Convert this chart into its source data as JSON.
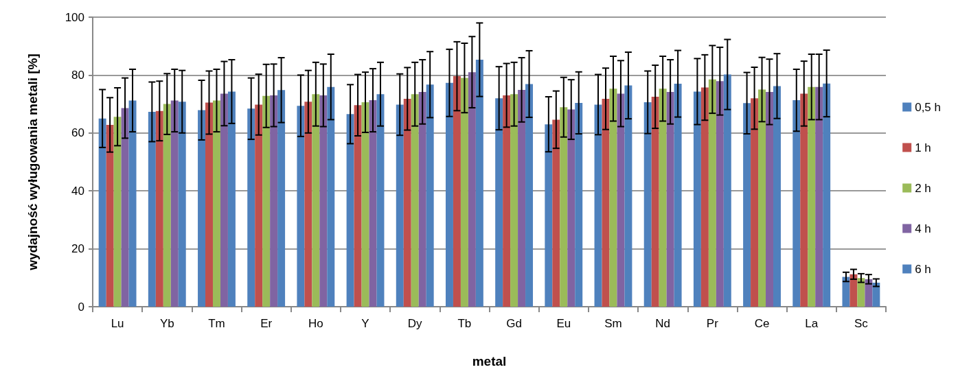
{
  "chart_data": {
    "type": "bar",
    "xlabel": "metal",
    "ylabel": "wydajność wyługowania metali [%]",
    "categories": [
      "Lu",
      "Yb",
      "Tm",
      "Er",
      "Ho",
      "Y",
      "Dy",
      "Tb",
      "Gd",
      "Eu",
      "Sm",
      "Nd",
      "Pr",
      "Ce",
      "La",
      "Sc"
    ],
    "series": [
      {
        "name": "0,5 h",
        "color": "#4f81bd",
        "values": [
          65,
          67.3,
          67.9,
          68.4,
          69.4,
          66.5,
          69.8,
          77.3,
          72,
          63,
          69.8,
          70.6,
          74.3,
          70.3,
          71.3,
          10.3
        ],
        "errors": [
          10,
          10.3,
          10.3,
          10.6,
          10.6,
          10.2,
          10.6,
          11.6,
          10.9,
          9.5,
          10.4,
          10.8,
          11.4,
          10.6,
          10.7,
          1.6
        ]
      },
      {
        "name": "1 h",
        "color": "#c0504d",
        "values": [
          62.8,
          67.6,
          70.5,
          69.8,
          70.8,
          69.6,
          71.8,
          79.6,
          73,
          64.6,
          71.8,
          72.5,
          75.7,
          72,
          73.6,
          11.2
        ],
        "errors": [
          9.4,
          10.3,
          10.9,
          10.5,
          10.8,
          10.6,
          10.8,
          11.9,
          11,
          9.9,
          10.6,
          10.9,
          11.3,
          10.7,
          11.2,
          1.7
        ]
      },
      {
        "name": "2 h",
        "color": "#9bbb59",
        "values": [
          65.6,
          70,
          71.2,
          72.8,
          73.4,
          70.6,
          73.4,
          79,
          73.4,
          68.9,
          75.3,
          75.3,
          78.5,
          75,
          75.9,
          9.9
        ],
        "errors": [
          10,
          10.5,
          10.8,
          10.9,
          11,
          10.4,
          11,
          12,
          11,
          10.3,
          11.2,
          11.2,
          11.7,
          11.1,
          11.3,
          1.5
        ]
      },
      {
        "name": "4 h",
        "color": "#8064a2",
        "values": [
          68.6,
          71.2,
          73.6,
          73,
          73,
          71.3,
          74.2,
          81,
          74.9,
          68.1,
          73.6,
          74.2,
          77.9,
          74.2,
          75.9,
          9.5
        ],
        "errors": [
          10.4,
          10.8,
          11.1,
          10.8,
          10.8,
          10.9,
          11.1,
          12.3,
          11.1,
          10.3,
          11.4,
          11.1,
          11.7,
          11.3,
          11.3,
          1.6
        ]
      },
      {
        "name": "6 h",
        "color": "#4f81bd",
        "values": [
          71.2,
          70.8,
          74.3,
          74.8,
          75.9,
          73.4,
          76.7,
          85.3,
          76.9,
          70.4,
          76.4,
          77,
          80.2,
          76.2,
          77.1,
          8.3
        ],
        "errors": [
          10.8,
          10.8,
          11,
          11.2,
          11.3,
          11,
          11.4,
          12.7,
          11.5,
          10.7,
          11.5,
          11.5,
          12.1,
          11.2,
          11.5,
          1.3
        ]
      }
    ],
    "ylim": [
      0,
      100
    ],
    "yticks": [
      0,
      20,
      40,
      60,
      80,
      100
    ],
    "grid": "y",
    "legend": "right"
  }
}
